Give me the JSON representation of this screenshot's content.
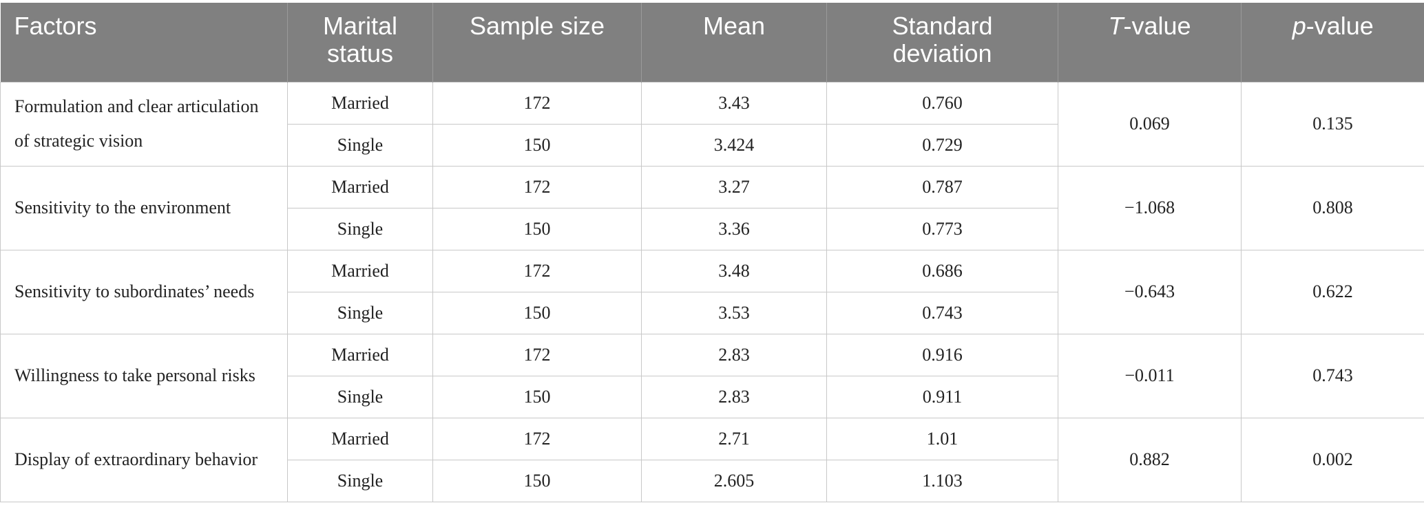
{
  "table": {
    "header": [
      "Factors",
      "Marital status",
      "Sample size",
      "Mean",
      "Standard deviation",
      "T-value",
      "p-value"
    ],
    "groups": [
      {
        "factor": "Formulation and clear articulation of strategic vision",
        "rows": [
          [
            "Married",
            "172",
            "3.43",
            "0.760"
          ],
          [
            "Single",
            "150",
            "3.424",
            "0.729"
          ]
        ],
        "t_value": "0.069",
        "p_value": "0.135"
      },
      {
        "factor": "Sensitivity to the environment",
        "rows": [
          [
            "Married",
            "172",
            "3.27",
            "0.787"
          ],
          [
            "Single",
            "150",
            "3.36",
            "0.773"
          ]
        ],
        "t_value": "−1.068",
        "p_value": "0.808"
      },
      {
        "factor": "Sensitivity to subordinates’ needs",
        "rows": [
          [
            "Married",
            "172",
            "3.48",
            "0.686"
          ],
          [
            "Single",
            "150",
            "3.53",
            "0.743"
          ]
        ],
        "t_value": "−0.643",
        "p_value": "0.622"
      },
      {
        "factor": "Willingness to take personal risks",
        "rows": [
          [
            "Married",
            "172",
            "2.83",
            "0.916"
          ],
          [
            "Single",
            "150",
            "2.83",
            "0.911"
          ]
        ],
        "t_value": "−0.011",
        "p_value": "0.743"
      },
      {
        "factor": "Display of extraordinary behavior",
        "rows": [
          [
            "Married",
            "172",
            "2.71",
            "1.01"
          ],
          [
            "Single",
            "150",
            "2.605",
            "1.103"
          ]
        ],
        "t_value": "0.882",
        "p_value": "0.002"
      }
    ]
  }
}
